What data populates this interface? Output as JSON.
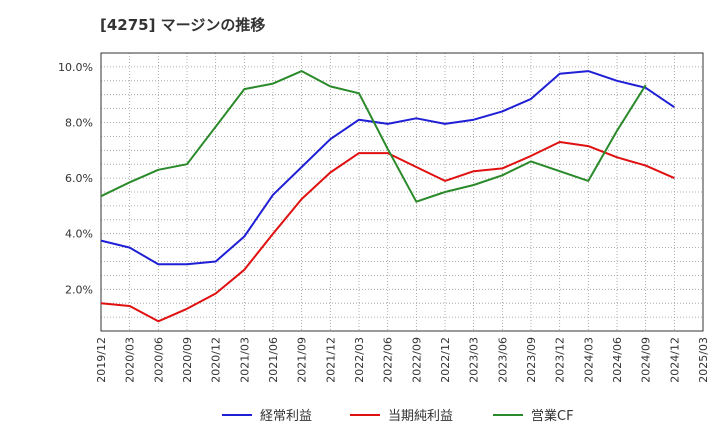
{
  "title": "[4275]  マージンの推移",
  "chart_data": {
    "type": "line",
    "title": "[4275]  マージンの推移",
    "xlabel": "",
    "ylabel": "",
    "x": [
      "2019/12",
      "2020/03",
      "2020/06",
      "2020/09",
      "2020/12",
      "2021/03",
      "2021/06",
      "2021/09",
      "2021/12",
      "2022/03",
      "2022/06",
      "2022/09",
      "2022/12",
      "2023/03",
      "2023/06",
      "2023/09",
      "2023/12",
      "2024/03",
      "2024/06",
      "2024/09",
      "2024/12",
      "2025/03"
    ],
    "ylim": [
      0.5,
      10.5
    ],
    "yticks": [
      2.0,
      4.0,
      6.0,
      8.0,
      10.0
    ],
    "ytick_labels": [
      "2.0%",
      "4.0%",
      "6.0%",
      "8.0%",
      "10.0%"
    ],
    "grid": true,
    "legend_position": "bottom",
    "series": [
      {
        "name": "経常利益",
        "color": "#1f1fd6",
        "values": [
          3.75,
          3.5,
          2.9,
          2.9,
          3.0,
          3.9,
          5.4,
          6.4,
          7.4,
          8.1,
          7.95,
          8.15,
          7.95,
          8.1,
          8.4,
          8.85,
          9.75,
          9.85,
          9.5,
          9.25,
          8.55,
          null
        ]
      },
      {
        "name": "当期純利益",
        "color": "#e01010",
        "values": [
          1.5,
          1.4,
          0.85,
          1.3,
          1.85,
          2.7,
          4.0,
          5.25,
          6.2,
          6.9,
          6.9,
          6.4,
          5.9,
          6.25,
          6.35,
          6.8,
          7.3,
          7.15,
          6.75,
          6.45,
          6.0,
          null
        ]
      },
      {
        "name": "営業CF",
        "color": "#2a8a2a",
        "values": [
          5.35,
          5.85,
          6.3,
          6.5,
          7.85,
          9.2,
          9.4,
          9.85,
          9.3,
          9.05,
          7.05,
          5.15,
          5.5,
          5.75,
          6.1,
          6.6,
          6.25,
          5.9,
          7.7,
          9.35,
          null,
          null
        ]
      }
    ]
  }
}
